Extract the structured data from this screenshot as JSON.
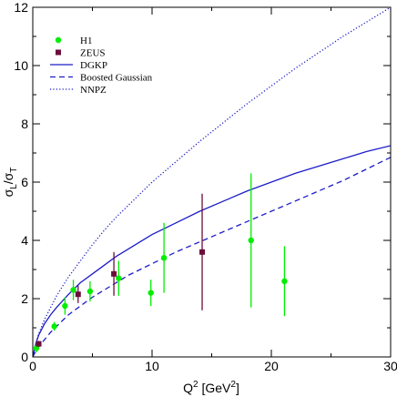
{
  "chart_data": {
    "type": "scatter",
    "xlabel": "Q",
    "xlabel_sup": "2",
    "xlabel_unit_open": " [GeV",
    "xlabel_unit_sup": "2",
    "xlabel_unit_close": "]",
    "ylabel_sigma1": "σ",
    "ylabel_sub1": "L",
    "ylabel_slash": "/σ",
    "ylabel_sub2": "T",
    "xlim": [
      0,
      30
    ],
    "ylim": [
      0,
      12
    ],
    "xticks": [
      0,
      10,
      20,
      30
    ],
    "yticks": [
      0,
      2,
      4,
      6,
      8,
      10,
      12
    ],
    "colors": {
      "h1": "#00ee00",
      "zeus": "#6b0f3a",
      "curves": "#1c1cc8"
    },
    "legend": {
      "placement": "top-left",
      "entries": [
        {
          "key": "h1",
          "label": "H1",
          "style": "circle"
        },
        {
          "key": "zeus",
          "label": "ZEUS",
          "style": "square"
        },
        {
          "key": "dgkp",
          "label": "DGKP",
          "style": "solid"
        },
        {
          "key": "bg",
          "label": "Boosted Gaussian",
          "style": "dashed"
        },
        {
          "key": "nnpz",
          "label": "NNPZ",
          "style": "dotted"
        }
      ]
    },
    "series": [
      {
        "key": "h1",
        "name": "H1",
        "points": [
          {
            "x": 0.3,
            "y": 0.3,
            "err": 0.15
          },
          {
            "x": 1.8,
            "y": 1.05,
            "err": 0.15
          },
          {
            "x": 2.7,
            "y": 1.75,
            "err": 0.3
          },
          {
            "x": 3.4,
            "y": 2.3,
            "err": 0.35
          },
          {
            "x": 4.8,
            "y": 2.25,
            "err": 0.35
          },
          {
            "x": 7.2,
            "y": 2.7,
            "err": 0.6
          },
          {
            "x": 9.9,
            "y": 2.2,
            "err": 0.45
          },
          {
            "x": 11.0,
            "y": 3.4,
            "err": 1.2
          },
          {
            "x": 18.3,
            "y": 4.0,
            "err": 2.3
          },
          {
            "x": 21.1,
            "y": 2.6,
            "err": 1.2
          }
        ]
      },
      {
        "key": "zeus",
        "name": "ZEUS",
        "points": [
          {
            "x": 0.5,
            "y": 0.45,
            "err": 0.1
          },
          {
            "x": 3.8,
            "y": 2.15,
            "err": 0.3
          },
          {
            "x": 6.8,
            "y": 2.85,
            "err": 0.75
          },
          {
            "x": 14.2,
            "y": 3.6,
            "err": 2.0
          }
        ]
      }
    ],
    "curves": [
      {
        "key": "dgkp",
        "name": "DGKP",
        "style": "solid",
        "points": [
          [
            0,
            0
          ],
          [
            0.25,
            0.45
          ],
          [
            0.5,
            0.75
          ],
          [
            1,
            1.15
          ],
          [
            1.5,
            1.45
          ],
          [
            2,
            1.7
          ],
          [
            3,
            2.15
          ],
          [
            4,
            2.55
          ],
          [
            5,
            2.85
          ],
          [
            6,
            3.15
          ],
          [
            7,
            3.45
          ],
          [
            8,
            3.7
          ],
          [
            9,
            3.95
          ],
          [
            10,
            4.2
          ],
          [
            12,
            4.6
          ],
          [
            14,
            5.0
          ],
          [
            16,
            5.35
          ],
          [
            18,
            5.7
          ],
          [
            20,
            6.0
          ],
          [
            22,
            6.3
          ],
          [
            24,
            6.55
          ],
          [
            26,
            6.8
          ],
          [
            28,
            7.05
          ],
          [
            30,
            7.25
          ]
        ]
      },
      {
        "key": "bg",
        "name": "Boosted Gaussian",
        "style": "dashed",
        "points": [
          [
            0,
            0
          ],
          [
            0.25,
            0.2
          ],
          [
            0.5,
            0.35
          ],
          [
            1,
            0.6
          ],
          [
            1.5,
            0.85
          ],
          [
            2,
            1.05
          ],
          [
            3,
            1.45
          ],
          [
            4,
            1.75
          ],
          [
            5,
            2.05
          ],
          [
            6,
            2.3
          ],
          [
            7,
            2.55
          ],
          [
            8,
            2.8
          ],
          [
            9,
            3.0
          ],
          [
            10,
            3.2
          ],
          [
            12,
            3.6
          ],
          [
            14,
            3.95
          ],
          [
            16,
            4.3
          ],
          [
            18,
            4.65
          ],
          [
            20,
            5.0
          ],
          [
            22,
            5.35
          ],
          [
            24,
            5.7
          ],
          [
            26,
            6.05
          ],
          [
            28,
            6.45
          ],
          [
            30,
            6.85
          ]
        ]
      },
      {
        "key": "nnpz",
        "name": "NNPZ",
        "style": "dotted",
        "points": [
          [
            0,
            0
          ],
          [
            0.25,
            0.45
          ],
          [
            0.5,
            0.8
          ],
          [
            1,
            1.3
          ],
          [
            1.5,
            1.7
          ],
          [
            2,
            2.1
          ],
          [
            3,
            2.75
          ],
          [
            4,
            3.3
          ],
          [
            5,
            3.85
          ],
          [
            6,
            4.35
          ],
          [
            7,
            4.8
          ],
          [
            8,
            5.2
          ],
          [
            9,
            5.6
          ],
          [
            10,
            6.0
          ],
          [
            12,
            6.7
          ],
          [
            14,
            7.4
          ],
          [
            16,
            8.05
          ],
          [
            18,
            8.7
          ],
          [
            20,
            9.3
          ],
          [
            22,
            9.9
          ],
          [
            24,
            10.45
          ],
          [
            26,
            11.0
          ],
          [
            28,
            11.5
          ],
          [
            30,
            12.0
          ]
        ]
      }
    ]
  }
}
